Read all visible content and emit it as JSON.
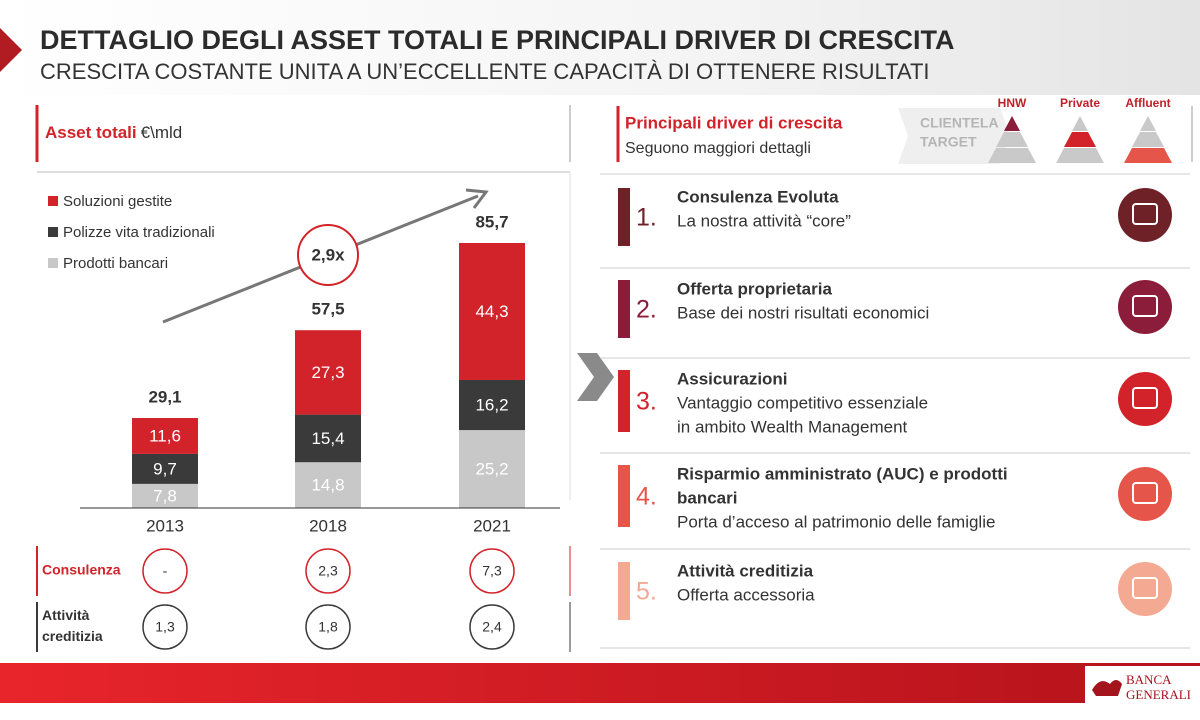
{
  "header": {
    "title": "DETTAGLIO DEGLI ASSET TOTALI E PRINCIPALI DRIVER DI CRESCITA",
    "subtitle": "CRESCITA COSTANTE UNITA A UN’ECCELLENTE CAPACITÀ DI OTTENERE RISULTATI"
  },
  "chart_data": {
    "type": "stacked_bar",
    "title": "Asset totali",
    "unit": "€\\mld",
    "categories": [
      "2013",
      "2018",
      "2021"
    ],
    "series": [
      {
        "name": "Soluzioni gestite",
        "color": "#d2232a",
        "values": [
          11.6,
          27.3,
          44.3
        ],
        "value_labels": [
          "11,6",
          "27,3",
          "44,3"
        ]
      },
      {
        "name": "Polizze vita tradizionali",
        "color": "#3a3a3a",
        "values": [
          9.7,
          15.4,
          16.2
        ],
        "value_labels": [
          "9,7",
          "15,4",
          "16,2"
        ]
      },
      {
        "name": "Prodotti bancari",
        "color": "#c8c8c8",
        "values": [
          7.8,
          14.8,
          25.2
        ],
        "value_labels": [
          "7,8",
          "14,8",
          "25,2"
        ]
      }
    ],
    "totals": {
      "values": [
        29.1,
        57.5,
        85.7
      ],
      "value_labels": [
        "29,1",
        "57,5",
        "85,7"
      ]
    },
    "growth_label": "2,9x"
  },
  "kpi_rows": [
    {
      "label_lines": [
        "Consulenza"
      ],
      "color": "#d2232a",
      "values": [
        "-",
        "2,3",
        "7,3"
      ]
    },
    {
      "label_lines": [
        "Attività",
        "creditizia"
      ],
      "color": "#3a3a3a",
      "values": [
        "1,3",
        "1,8",
        "2,4"
      ]
    }
  ],
  "drivers": {
    "title": "Principali driver di crescita",
    "subtitle": "Seguono maggiori dettagli",
    "target_label_lines": [
      "CLIENTELA",
      "TARGET"
    ],
    "segments": [
      "HNW",
      "Private",
      "Affluent"
    ],
    "items": [
      {
        "number": "1.",
        "color": "#6e2228",
        "title_lines": [
          "Consulenza Evoluta"
        ],
        "desc_lines": [
          "La nostra attività “core”"
        ]
      },
      {
        "number": "2.",
        "color": "#8b1d3a",
        "title_lines": [
          "Offerta proprietaria"
        ],
        "desc_lines": [
          " Base dei nostri risultati economici"
        ]
      },
      {
        "number": "3.",
        "color": "#d2232a",
        "title_lines": [
          "Assicurazioni"
        ],
        "desc_lines": [
          "Vantaggio competitivo essenziale",
          "in ambito Wealth Management"
        ]
      },
      {
        "number": "4.",
        "color": "#e5554a",
        "title_lines": [
          "Risparmio amministrato (AUC) e prodotti",
          "bancari"
        ],
        "desc_lines": [
          "Porta d’acceso al patrimonio delle famiglie"
        ]
      },
      {
        "number": "5.",
        "color": "#f4a993",
        "title_lines": [
          "Attività creditizia"
        ],
        "desc_lines": [
          "Offerta accessoria"
        ]
      }
    ]
  },
  "footer": {
    "logo_lines": [
      "BANCA",
      "GENERALI"
    ]
  }
}
